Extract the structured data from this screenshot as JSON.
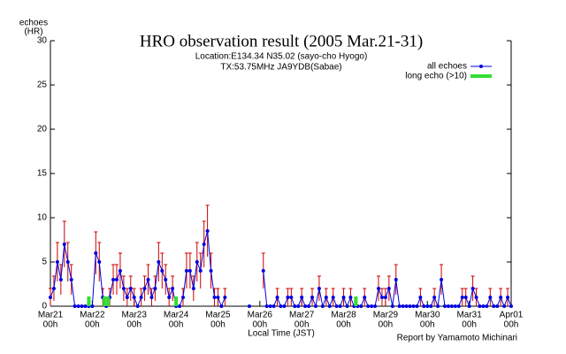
{
  "chart_data": {
    "type": "line",
    "title": "HRO observation result (2005 Mar.21-31)",
    "subtitle": [
      "Location:E134.34 N35.02 (sayo-cho Hyogo)",
      "TX:53.75MHz JA9YDB(Sabae)"
    ],
    "y_label": [
      "echoes",
      "(HR)"
    ],
    "x_label": "Local Time (JST)",
    "credit": "Report by Yamamoto Michinari",
    "xtick_hour": "00h",
    "xlim": [
      0,
      264
    ],
    "ylim": [
      0,
      30
    ],
    "yticks": [
      0,
      5,
      10,
      15,
      20,
      25,
      30
    ],
    "xticks": [
      {
        "value": 0,
        "label": "Mar21"
      },
      {
        "value": 24,
        "label": "Mar22"
      },
      {
        "value": 48,
        "label": "Mar23"
      },
      {
        "value": 72,
        "label": "Mar24"
      },
      {
        "value": 96,
        "label": "Mar25"
      },
      {
        "value": 120,
        "label": "Mar26"
      },
      {
        "value": 144,
        "label": "Mar27"
      },
      {
        "value": 168,
        "label": "Mar28"
      },
      {
        "value": 192,
        "label": "Mar29"
      },
      {
        "value": 216,
        "label": "Mar30"
      },
      {
        "value": 240,
        "label": "Mar31"
      },
      {
        "value": 264,
        "label": "Apr01"
      }
    ],
    "x": [
      0,
      2,
      4,
      6,
      8,
      10,
      12,
      14,
      16,
      18,
      20,
      22,
      24,
      26,
      28,
      30,
      32,
      34,
      36,
      38,
      40,
      42,
      44,
      46,
      48,
      50,
      52,
      54,
      56,
      58,
      60,
      62,
      64,
      66,
      68,
      70,
      72,
      74,
      76,
      78,
      80,
      82,
      84,
      86,
      88,
      90,
      92,
      94,
      96,
      98,
      100,
      102,
      104,
      106,
      108,
      110,
      112,
      114,
      116,
      118,
      120,
      122,
      124,
      126,
      128,
      130,
      132,
      134,
      136,
      138,
      140,
      142,
      144,
      146,
      148,
      150,
      152,
      154,
      156,
      158,
      160,
      162,
      164,
      166,
      168,
      170,
      172,
      174,
      176,
      178,
      180,
      182,
      184,
      186,
      188,
      190,
      192,
      194,
      196,
      198,
      200,
      202,
      204,
      206,
      208,
      210,
      212,
      214,
      216,
      218,
      220,
      222,
      224,
      226,
      228,
      230,
      232,
      234,
      236,
      238,
      240,
      242,
      244,
      246,
      248,
      250,
      252,
      254,
      256,
      258,
      260,
      262,
      264
    ],
    "series": [
      {
        "name": "all echoes",
        "color": "#0000e0",
        "error_color": "#cc0000",
        "values": [
          1,
          2,
          5,
          3,
          7,
          5,
          3,
          0,
          0,
          0,
          0,
          0,
          0,
          6,
          5,
          1,
          0,
          1,
          3,
          3,
          4,
          2,
          1,
          2,
          1,
          0,
          1,
          2,
          3,
          1,
          2,
          5,
          4,
          3,
          1,
          2,
          0,
          0,
          1,
          4,
          4,
          2,
          5,
          4,
          7,
          8.5,
          4,
          1,
          1,
          0,
          1,
          null,
          null,
          null,
          null,
          null,
          null,
          0,
          null,
          null,
          null,
          4,
          0,
          0,
          0,
          1,
          0,
          0,
          1,
          1,
          0,
          0,
          1,
          0,
          0,
          1,
          0,
          2,
          0,
          1,
          0,
          1,
          0,
          0,
          1,
          0,
          1,
          0,
          0,
          0,
          1,
          0,
          0,
          0,
          2,
          1,
          1,
          2,
          0,
          3,
          0,
          0,
          0,
          0,
          0,
          0,
          1,
          0,
          0,
          0,
          1,
          0,
          3,
          0,
          0,
          0,
          0,
          0,
          1,
          1,
          0,
          2,
          1,
          0,
          0,
          0,
          1,
          0,
          0,
          1,
          0,
          1,
          0
        ],
        "errors": [
          1,
          1.4,
          2.2,
          1.7,
          2.6,
          2.2,
          1.7,
          0,
          0,
          0,
          0,
          0,
          0,
          2.4,
          2.2,
          1,
          0,
          1,
          1.7,
          1.7,
          2,
          1.4,
          1,
          1.4,
          1,
          0,
          1,
          1.4,
          1.7,
          1,
          1.4,
          2.2,
          2,
          1.7,
          1,
          1.4,
          0,
          0,
          1,
          2,
          2,
          1.4,
          2.2,
          2,
          2.6,
          2.9,
          2,
          1,
          1,
          0,
          1,
          null,
          null,
          null,
          null,
          null,
          null,
          0,
          null,
          null,
          null,
          2,
          0,
          0,
          0,
          1,
          0,
          0,
          1,
          1,
          0,
          0,
          1,
          0,
          0,
          1,
          0,
          1.4,
          0,
          1,
          0,
          1,
          0,
          0,
          1,
          0,
          1,
          0,
          0,
          0,
          1,
          0,
          0,
          0,
          1.4,
          1,
          1,
          1.4,
          0,
          1.7,
          0,
          0,
          0,
          0,
          0,
          0,
          1,
          0,
          0,
          0,
          1,
          0,
          1.7,
          0,
          0,
          0,
          0,
          0,
          1,
          1,
          0,
          1.4,
          1,
          0,
          0,
          0,
          1,
          0,
          0,
          1,
          0,
          1,
          0
        ]
      },
      {
        "name": "long echo (>10)",
        "color": "#33dd33",
        "x": [
          22,
          31,
          33,
          72,
          175
        ],
        "values": [
          1,
          1,
          1,
          1,
          1
        ]
      }
    ]
  }
}
